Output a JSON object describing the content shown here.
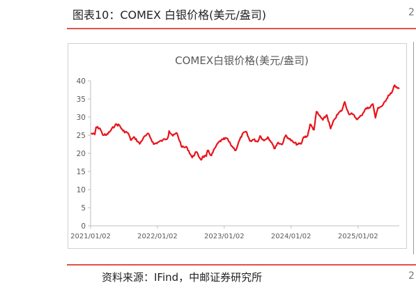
{
  "figure_title": "图表10：COMEX 白银价格(美元/盎司)",
  "source": "资料来源：IFind，中邮证券研究所",
  "chart_data": {
    "type": "line",
    "title": "COMEX白银价格(美元/盎司)",
    "xlabel": "",
    "ylabel": "",
    "ylim": [
      0,
      40
    ],
    "yticks": [
      0,
      5,
      10,
      15,
      20,
      25,
      30,
      35,
      40
    ],
    "xtick_labels": [
      "2021/01/02",
      "2022/01/02",
      "2023/01/02",
      "2024/01/02",
      "2025/01/02"
    ],
    "x_range": [
      "2021/01/02",
      "2025/08/15"
    ],
    "grid": false,
    "legend": "none",
    "line_color": "#e8141b",
    "series": [
      {
        "x": [
          "2021/01/04",
          "2021/01/25",
          "2021/02/01",
          "2021/02/22",
          "2021/03/08",
          "2021/03/29",
          "2021/04/19",
          "2021/05/17",
          "2021/06/07",
          "2021/06/28",
          "2021/07/26",
          "2021/08/09",
          "2021/08/30",
          "2021/09/27",
          "2021/10/18",
          "2021/11/15",
          "2021/12/13",
          "2022/01/03",
          "2022/01/31",
          "2022/02/28",
          "2022/03/07",
          "2022/03/28",
          "2022/04/18",
          "2022/05/16",
          "2022/06/13",
          "2022/07/11",
          "2022/08/01",
          "2022/08/29",
          "2022/09/05",
          "2022/09/26",
          "2022/10/03",
          "2022/10/24",
          "2022/11/14",
          "2022/12/05",
          "2022/12/26",
          "2023/01/16",
          "2023/02/06",
          "2023/03/06",
          "2023/03/20",
          "2023/04/10",
          "2023/05/01",
          "2023/05/22",
          "2023/06/12",
          "2023/07/03",
          "2023/07/17",
          "2023/08/07",
          "2023/08/28",
          "2023/09/18",
          "2023/10/02",
          "2023/10/23",
          "2023/11/13",
          "2023/12/04",
          "2023/12/18",
          "2024/01/15",
          "2024/02/05",
          "2024/02/26",
          "2024/03/11",
          "2024/04/01",
          "2024/04/15",
          "2024/05/06",
          "2024/05/20",
          "2024/06/03",
          "2024/06/24",
          "2024/07/15",
          "2024/08/05",
          "2024/08/26",
          "2024/09/16",
          "2024/10/07",
          "2024/10/21",
          "2024/11/11",
          "2024/12/02",
          "2024/12/30",
          "2025/01/20",
          "2025/02/10",
          "2025/03/03",
          "2025/03/24",
          "2025/04/07",
          "2025/04/21",
          "2025/05/12",
          "2025/06/02",
          "2025/06/16",
          "2025/07/07",
          "2025/07/21",
          "2025/08/04",
          "2025/08/15"
        ],
        "y": [
          25.5,
          25.2,
          27.2,
          26.9,
          25.2,
          25.0,
          26.1,
          27.9,
          27.8,
          26.2,
          25.6,
          23.7,
          24.4,
          22.6,
          24.3,
          25.4,
          22.5,
          23.0,
          23.6,
          24.3,
          26.2,
          24.8,
          25.6,
          21.7,
          21.6,
          18.8,
          20.4,
          18.2,
          19.0,
          19.2,
          20.8,
          19.4,
          21.6,
          23.2,
          23.8,
          24.2,
          22.4,
          20.8,
          22.8,
          25.2,
          26.0,
          23.4,
          23.8,
          23.2,
          24.8,
          23.5,
          24.5,
          23.0,
          21.3,
          23.0,
          22.4,
          25.0,
          24.2,
          23.0,
          22.5,
          22.6,
          24.5,
          24.8,
          28.0,
          26.5,
          31.5,
          30.5,
          29.2,
          30.6,
          26.8,
          29.4,
          31.0,
          32.0,
          34.2,
          31.0,
          30.8,
          29.4,
          30.4,
          32.2,
          32.6,
          33.6,
          29.8,
          32.6,
          33.0,
          34.4,
          36.0,
          37.0,
          38.8,
          38.0,
          37.8
        ]
      }
    ]
  }
}
